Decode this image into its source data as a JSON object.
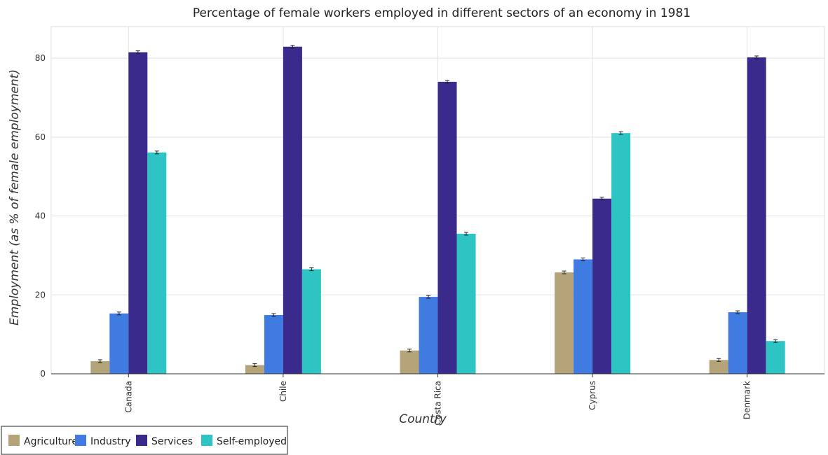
{
  "chart_data": {
    "type": "bar",
    "title": "Percentage of female workers employed in different sectors of an economy in 1981",
    "xlabel": "Country",
    "ylabel": "Employment (as % of female employment)",
    "categories": [
      "Canada",
      "Chile",
      "Costa Rica",
      "Cyprus",
      "Denmark"
    ],
    "ylim": [
      0,
      88
    ],
    "yticks": [
      0,
      20,
      40,
      60,
      80
    ],
    "grid": true,
    "legend_position": "bottom-left",
    "series": [
      {
        "name": "Agriculture",
        "color": "#b5a47a",
        "values": [
          3.2,
          2.2,
          5.9,
          25.7,
          3.5
        ]
      },
      {
        "name": "Industry",
        "color": "#3f7be0",
        "values": [
          15.3,
          14.9,
          19.5,
          29.0,
          15.6
        ]
      },
      {
        "name": "Services",
        "color": "#3a2a8c",
        "values": [
          81.5,
          82.9,
          74.0,
          44.4,
          80.2
        ]
      },
      {
        "name": "Self-employed",
        "color": "#2ec4c4",
        "values": [
          56.1,
          26.5,
          35.5,
          61.0,
          8.3
        ]
      }
    ]
  }
}
